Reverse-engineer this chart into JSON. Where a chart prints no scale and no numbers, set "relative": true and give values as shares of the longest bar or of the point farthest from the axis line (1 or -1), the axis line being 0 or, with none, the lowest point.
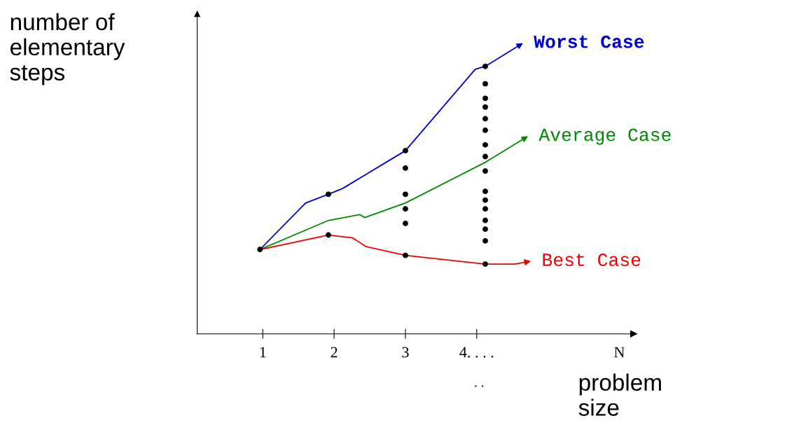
{
  "chart_data": {
    "type": "line",
    "relative": true,
    "xlabel": "problem\nsize",
    "ylabel": "number of\nelementary\nsteps",
    "xlim": [
      0.08,
      6.2
    ],
    "xticks": [
      1,
      2,
      3,
      {
        "value": 4,
        "label": "4. . . ."
      },
      {
        "value": 6,
        "label": "N"
      }
    ],
    "annotations": [
      ". ."
    ],
    "grid": false,
    "legend": "right",
    "series": [
      {
        "name": "Worst Case",
        "color": "#0000cc",
        "x": [
          0.96,
          1.6,
          1.92,
          2.12,
          3.0,
          3.98,
          4.12,
          4.65
        ],
        "values": [
          0.29,
          0.45,
          0.48,
          0.5,
          0.63,
          0.91,
          0.92,
          1.0
        ]
      },
      {
        "name": "Average Case",
        "color": "#008800",
        "x": [
          0.96,
          1.92,
          2.36,
          2.43,
          3.0,
          4.12,
          4.72
        ],
        "values": [
          0.29,
          0.39,
          0.41,
          0.4,
          0.45,
          0.59,
          0.68
        ]
      },
      {
        "name": "Best Case",
        "color": "#ee0000",
        "x": [
          0.96,
          1.92,
          2.26,
          2.45,
          3.0,
          4.12,
          4.53,
          4.76
        ],
        "values": [
          0.29,
          0.34,
          0.33,
          0.3,
          0.27,
          0.24,
          0.24,
          0.25
        ]
      },
      {
        "type": "scatter",
        "marker": "circle",
        "color": "#000000",
        "x": [
          0.96,
          1.92,
          1.92,
          3.0,
          3.0,
          3.0,
          3.0,
          3.0,
          3.0,
          4.12,
          4.12,
          4.12,
          4.12,
          4.12,
          4.12,
          4.12,
          4.12,
          4.12,
          4.12,
          4.12,
          4.12,
          4.12,
          4.12,
          4.12,
          4.12
        ],
        "values": [
          0.29,
          0.48,
          0.34,
          0.63,
          0.57,
          0.48,
          0.43,
          0.38,
          0.27,
          0.92,
          0.86,
          0.81,
          0.78,
          0.74,
          0.7,
          0.65,
          0.61,
          0.56,
          0.49,
          0.46,
          0.43,
          0.39,
          0.36,
          0.32,
          0.24
        ]
      }
    ]
  }
}
